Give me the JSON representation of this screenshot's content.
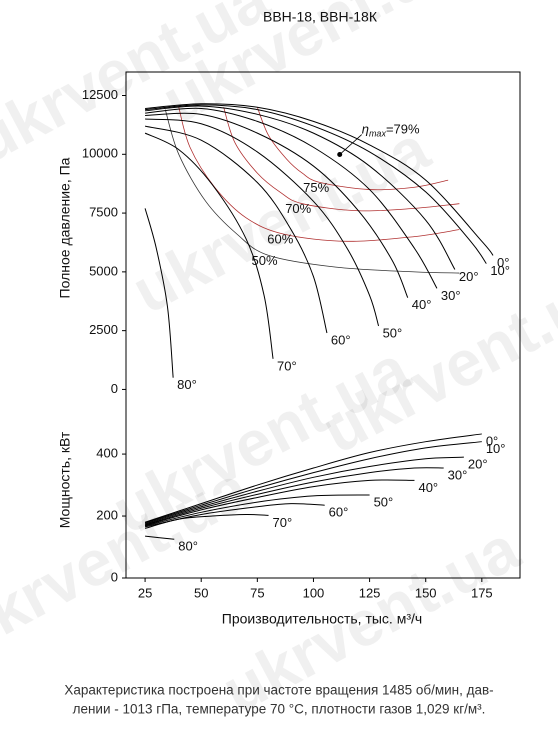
{
  "chart_data": [
    {
      "type": "line",
      "title": "ВВН-18, ВВН-18К",
      "y_label": "Полное давление, Па",
      "xlim": [
        16.5,
        192
      ],
      "xticks": [
        25,
        50,
        75,
        100,
        125,
        150,
        175
      ],
      "ylim": [
        -1300,
        13500
      ],
      "yticks": [
        0,
        2500,
        5000,
        7500,
        10000,
        12500
      ],
      "series": [
        {
          "name": "0°",
          "color": "#000000",
          "x": [
            25,
            50,
            75,
            100,
            125,
            150,
            175,
            180
          ],
          "values": [
            11950,
            12150,
            12000,
            11400,
            10400,
            8900,
            6300,
            5700
          ]
        },
        {
          "name": "10°",
          "color": "#000000",
          "x": [
            25,
            50,
            75,
            100,
            125,
            150,
            170,
            177
          ],
          "values": [
            11900,
            12100,
            11900,
            11200,
            10100,
            8400,
            6300,
            5350
          ]
        },
        {
          "name": "20°",
          "color": "#000000",
          "x": [
            25,
            50,
            75,
            100,
            125,
            150,
            163
          ],
          "values": [
            11850,
            12050,
            11700,
            10900,
            9500,
            7200,
            5100
          ]
        },
        {
          "name": "30°",
          "color": "#000000",
          "x": [
            25,
            50,
            75,
            100,
            125,
            145,
            155
          ],
          "values": [
            11750,
            11950,
            11400,
            10300,
            8500,
            6000,
            4300
          ]
        },
        {
          "name": "40°",
          "color": "#000000",
          "x": [
            25,
            50,
            75,
            100,
            120,
            135,
            142
          ],
          "values": [
            11650,
            11700,
            10900,
            9500,
            7600,
            5500,
            3900
          ]
        },
        {
          "name": "50°",
          "color": "#000000",
          "x": [
            25,
            50,
            75,
            100,
            115,
            125,
            129
          ],
          "values": [
            11500,
            11300,
            10100,
            8000,
            6000,
            4000,
            2700
          ]
        },
        {
          "name": "60°",
          "color": "#000000",
          "x": [
            25,
            50,
            75,
            90,
            100,
            106
          ],
          "values": [
            11200,
            10600,
            8800,
            6800,
            4800,
            2400
          ]
        },
        {
          "name": "70°",
          "color": "#000000",
          "x": [
            25,
            40,
            55,
            70,
            78,
            82
          ],
          "values": [
            10900,
            10200,
            8700,
            6400,
            4000,
            1300
          ]
        },
        {
          "name": "80°",
          "color": "#000000",
          "x": [
            25,
            30,
            35,
            37.5
          ],
          "values": [
            7700,
            6000,
            3500,
            500
          ]
        }
      ],
      "efficiency": [
        {
          "name": "50%",
          "color": "#333333",
          "x": [
            34,
            40,
            52,
            66,
            80,
            110,
            145,
            165
          ],
          "values": [
            11900,
            10000,
            8000,
            6600,
            5700,
            5200,
            5000,
            4950
          ]
        },
        {
          "name": "60%",
          "color": "#b03030",
          "x": [
            40,
            45,
            56,
            70,
            87,
            115,
            145,
            165
          ],
          "values": [
            12000,
            10300,
            8600,
            7300,
            6600,
            6300,
            6500,
            6800
          ]
        },
        {
          "name": "70%",
          "color": "#b03030",
          "x": [
            60,
            65,
            75,
            85,
            95,
            120,
            145,
            165
          ],
          "values": [
            12000,
            10500,
            9200,
            8400,
            7900,
            7600,
            7700,
            7900
          ]
        },
        {
          "name": "75%",
          "color": "#b03030",
          "x": [
            75,
            80,
            88,
            95,
            103,
            125,
            145,
            160
          ],
          "values": [
            12000,
            10800,
            9800,
            9200,
            8800,
            8500,
            8600,
            8900
          ]
        }
      ],
      "annotation": {
        "symbol": "η",
        "sub": "max",
        "text": "=79%",
        "x": 111.7,
        "y": 9990
      }
    },
    {
      "type": "line",
      "y_label": "Мощность, кВт",
      "x_label": "Производительность, тыс. м³/ч",
      "xlim": [
        16.5,
        192
      ],
      "xticks": [
        25,
        50,
        75,
        100,
        125,
        150,
        175
      ],
      "ylim": [
        0,
        510
      ],
      "yticks": [
        0,
        200,
        400
      ],
      "series": [
        {
          "name": "0°",
          "color": "#000000",
          "x": [
            25,
            50,
            75,
            100,
            125,
            150,
            175
          ],
          "values": [
            180,
            240,
            300,
            355,
            405,
            440,
            465
          ]
        },
        {
          "name": "10°",
          "color": "#000000",
          "x": [
            25,
            50,
            75,
            100,
            125,
            150,
            175
          ],
          "values": [
            178,
            235,
            290,
            340,
            385,
            420,
            440
          ]
        },
        {
          "name": "20°",
          "color": "#000000",
          "x": [
            25,
            50,
            75,
            100,
            125,
            150,
            167
          ],
          "values": [
            175,
            230,
            280,
            325,
            360,
            385,
            390
          ]
        },
        {
          "name": "30°",
          "color": "#000000",
          "x": [
            25,
            50,
            75,
            100,
            125,
            145,
            158
          ],
          "values": [
            172,
            225,
            270,
            310,
            340,
            355,
            355
          ]
        },
        {
          "name": "40°",
          "color": "#000000",
          "x": [
            25,
            50,
            75,
            100,
            125,
            145
          ],
          "values": [
            170,
            220,
            260,
            295,
            315,
            315
          ]
        },
        {
          "name": "50°",
          "color": "#000000",
          "x": [
            25,
            50,
            75,
            100,
            125
          ],
          "values": [
            168,
            212,
            245,
            265,
            268
          ]
        },
        {
          "name": "60°",
          "color": "#000000",
          "x": [
            25,
            50,
            75,
            90,
            105
          ],
          "values": [
            165,
            205,
            230,
            240,
            235
          ]
        },
        {
          "name": "70°",
          "color": "#000000",
          "x": [
            25,
            40,
            55,
            70,
            80
          ],
          "values": [
            160,
            190,
            200,
            205,
            202
          ]
        },
        {
          "name": "80°",
          "color": "#000000",
          "x": [
            25,
            38
          ],
          "values": [
            135,
            125
          ]
        }
      ]
    }
  ],
  "footnote": [
    "Характеристика построена при частоте вращения 1485 об/мин, дав-",
    "лении - 1013 гПа, температуре 70 °С, плотности газов 1,029 кг/м³."
  ],
  "watermark": "ukrvent.ua"
}
